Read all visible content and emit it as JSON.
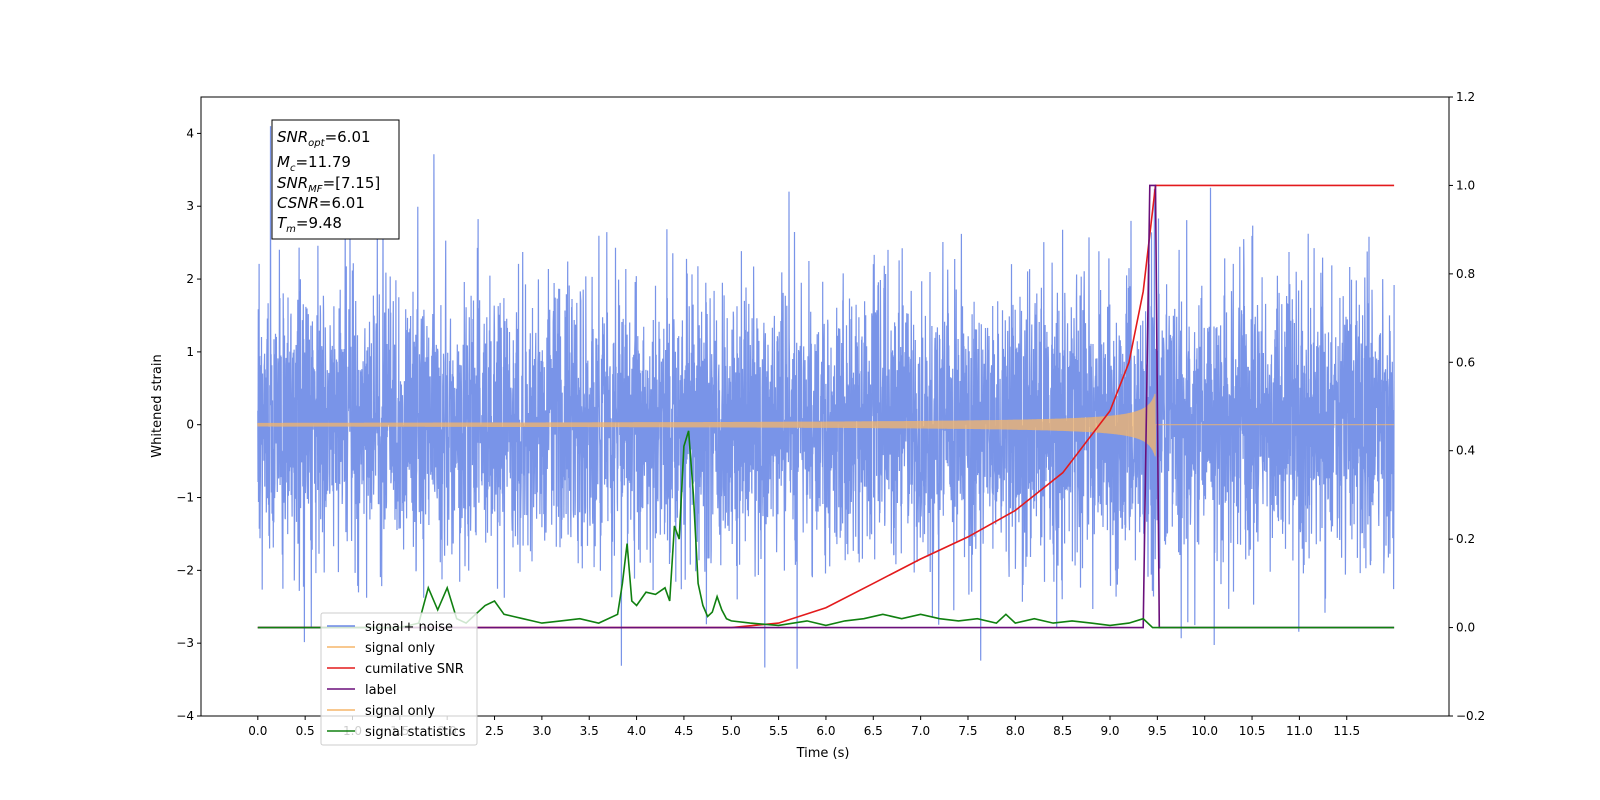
{
  "chart_data": {
    "type": "line",
    "title": "",
    "xlabel": "Time (s)",
    "ylabel": "Whitened strain",
    "xlim": [
      -0.6,
      12.58
    ],
    "ylim": [
      -4,
      4.5
    ],
    "y2lim": [
      -0.2,
      1.2
    ],
    "grid": false,
    "legend_position": "lower-left",
    "x_ticks": [
      "0.0",
      "0.5",
      "1.0",
      "1.5",
      "2.0",
      "2.5",
      "3.0",
      "3.5",
      "4.0",
      "4.5",
      "5.0",
      "5.5",
      "6.0",
      "6.5",
      "7.0",
      "7.5",
      "8.0",
      "8.5",
      "9.0",
      "9.5",
      "10.0",
      "10.5",
      "11.0",
      "11.5"
    ],
    "y_ticks": [
      "4",
      "3",
      "2",
      "1",
      "0",
      "−1",
      "−2",
      "−3",
      "−4"
    ],
    "y2_ticks": [
      "1.2",
      "1.0",
      "0.8",
      "0.6",
      "0.4",
      "0.2",
      "0.0",
      "−0.2"
    ],
    "annotation": {
      "snr_opt": {
        "base": "SNR",
        "sub": "opt",
        "value": "=6.01"
      },
      "mc": {
        "base": "M",
        "sub": "c",
        "value": "=11.79"
      },
      "snr_mf": {
        "base": "SNR",
        "sub": "MF",
        "value": "=[7.15]"
      },
      "csnr": {
        "base": "CSNR",
        "value": "=6.01"
      },
      "tm": {
        "base": "T",
        "sub": "m",
        "value": "=9.48"
      }
    },
    "series": [
      {
        "name": "signal+ noise",
        "color": "#6a88e6",
        "axis": "left",
        "kind": "noise",
        "x_range": [
          0,
          12
        ],
        "std": 1,
        "peak_max": 4.1,
        "peak_min": -3.6
      },
      {
        "name": "signal only",
        "color": "#f5b56a",
        "axis": "left",
        "kind": "chirp",
        "x_range": [
          0,
          12
        ],
        "merger_time": 9.48,
        "peak_amplitude": 0.45
      },
      {
        "name": "cumilative SNR",
        "color": "#e31a1c",
        "axis": "right",
        "x": [
          0.0,
          5.0,
          5.5,
          6.0,
          6.5,
          7.0,
          7.5,
          8.0,
          8.5,
          9.0,
          9.2,
          9.35,
          9.48,
          12.0
        ],
        "y": [
          0.0,
          0.0,
          0.01,
          0.045,
          0.1,
          0.155,
          0.205,
          0.265,
          0.35,
          0.49,
          0.6,
          0.76,
          1.0,
          1.0
        ]
      },
      {
        "name": "label",
        "color": "#6a0f7a",
        "axis": "right",
        "x": [
          0.0,
          9.35,
          9.42,
          9.48,
          9.52,
          12.0
        ],
        "y": [
          0.0,
          0.0,
          1.0,
          1.0,
          0.0,
          0.0
        ]
      },
      {
        "name": "signal statistics",
        "color": "#108010",
        "axis": "right",
        "x": [
          0.0,
          1.5,
          1.7,
          1.8,
          1.9,
          2.0,
          2.1,
          2.2,
          2.3,
          2.4,
          2.5,
          2.6,
          2.7,
          2.8,
          2.9,
          3.0,
          3.2,
          3.4,
          3.6,
          3.8,
          3.85,
          3.9,
          3.95,
          4.0,
          4.1,
          4.2,
          4.3,
          4.35,
          4.4,
          4.45,
          4.5,
          4.55,
          4.6,
          4.65,
          4.7,
          4.75,
          4.8,
          4.85,
          4.9,
          4.95,
          5.0,
          5.2,
          5.5,
          5.8,
          6.0,
          6.2,
          6.4,
          6.6,
          6.8,
          7.0,
          7.2,
          7.4,
          7.6,
          7.8,
          7.9,
          8.0,
          8.2,
          8.4,
          8.6,
          8.8,
          9.0,
          9.2,
          9.35,
          9.45,
          9.55,
          10.0,
          11.0,
          12.0
        ],
        "y": [
          0.0,
          0.0,
          0.01,
          0.09,
          0.04,
          0.09,
          0.02,
          0.01,
          0.03,
          0.05,
          0.06,
          0.03,
          0.025,
          0.02,
          0.015,
          0.01,
          0.015,
          0.02,
          0.01,
          0.03,
          0.1,
          0.19,
          0.06,
          0.05,
          0.08,
          0.075,
          0.09,
          0.06,
          0.23,
          0.2,
          0.41,
          0.445,
          0.3,
          0.1,
          0.05,
          0.025,
          0.035,
          0.07,
          0.04,
          0.02,
          0.015,
          0.01,
          0.005,
          0.015,
          0.005,
          0.015,
          0.02,
          0.03,
          0.02,
          0.03,
          0.02,
          0.015,
          0.02,
          0.01,
          0.03,
          0.01,
          0.02,
          0.01,
          0.015,
          0.01,
          0.005,
          0.01,
          0.02,
          0.0,
          0.0,
          0.0,
          0.0,
          0.0
        ]
      }
    ],
    "legend": [
      "signal+ noise",
      "signal only",
      "cumilative SNR",
      "label",
      "signal only",
      "signal statistics"
    ]
  }
}
